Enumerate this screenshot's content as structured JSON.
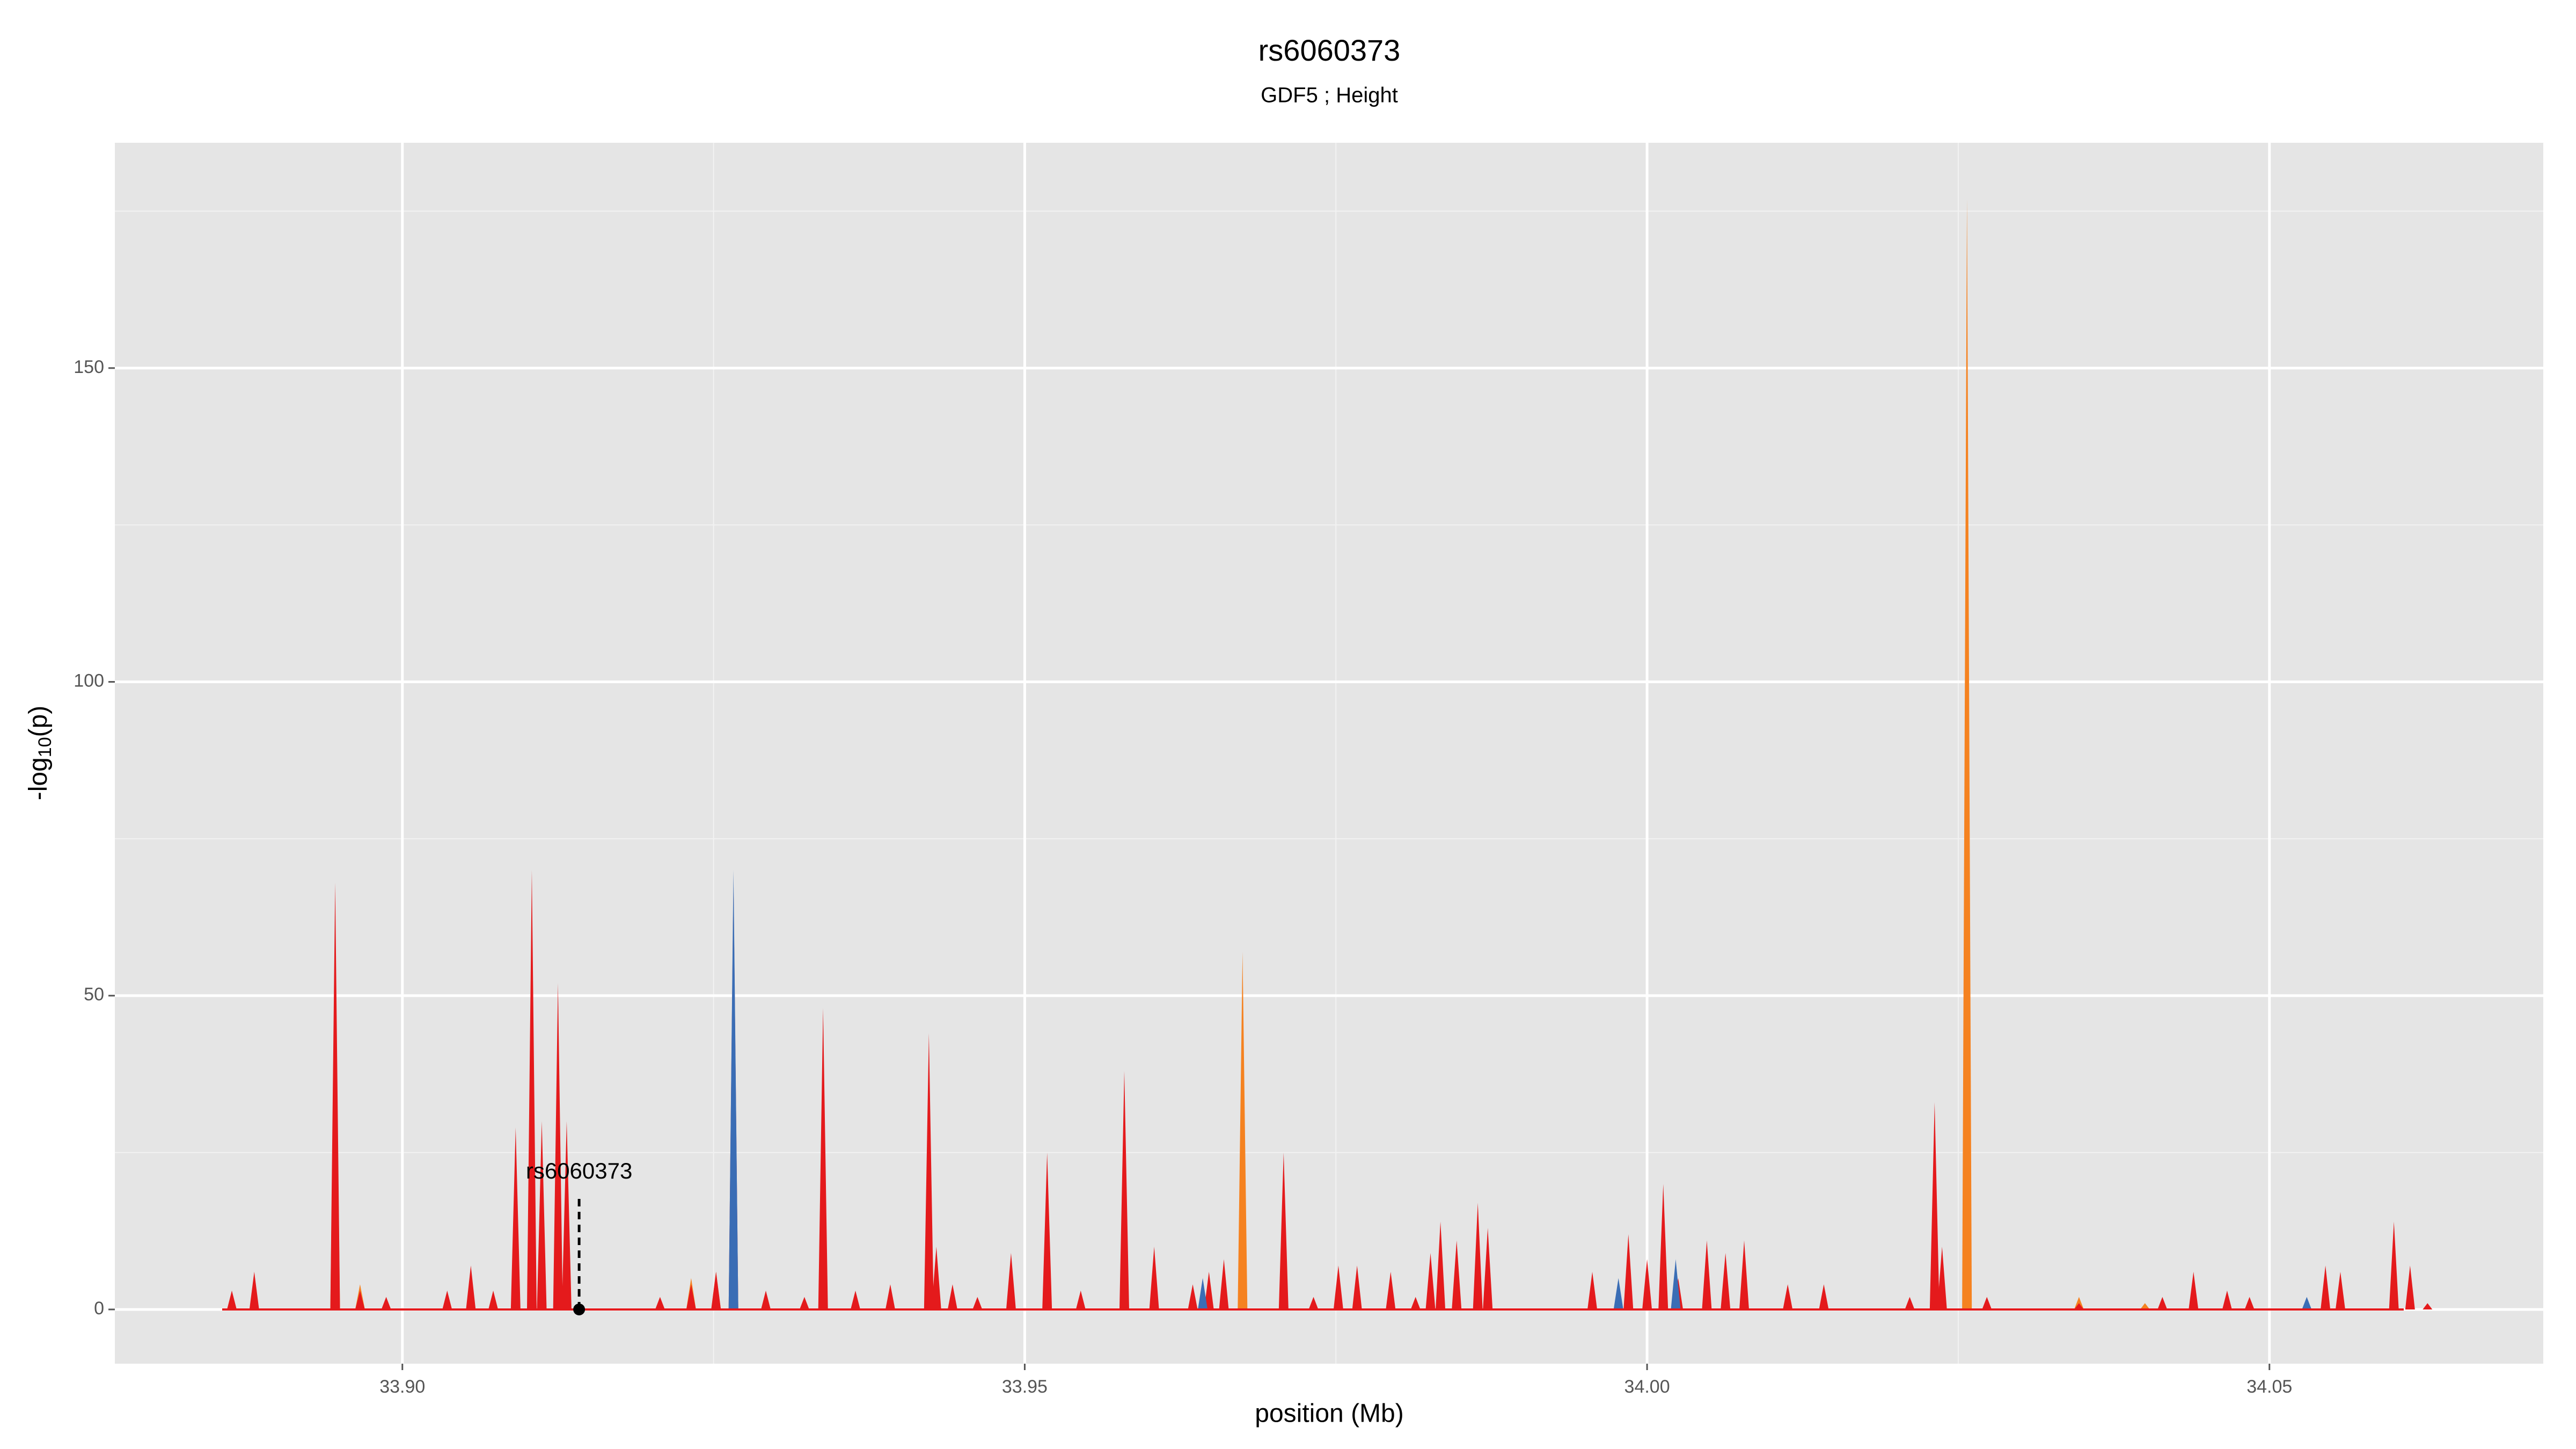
{
  "chart_data": {
    "type": "area",
    "title": "rs6060373",
    "subtitle": "GDF5 ; Height",
    "xlabel": "position (Mb)",
    "ylabel_parts": [
      "-log",
      "10",
      "(p)"
    ],
    "xlim": [
      33.8769,
      34.072
    ],
    "ylim": [
      -8.64,
      185.9
    ],
    "xticks": [
      {
        "value": 33.9,
        "label": "33.90"
      },
      {
        "value": 33.95,
        "label": "33.95"
      },
      {
        "value": 34.0,
        "label": "34.00"
      },
      {
        "value": 34.05,
        "label": "34.05"
      }
    ],
    "yticks": [
      0,
      50,
      100,
      150
    ],
    "minor_xticks": [
      33.925,
      33.975,
      34.025
    ],
    "minor_yticks": [
      25,
      75,
      125,
      175
    ],
    "grid": true,
    "annotation": {
      "text": "rs6060373",
      "x": 33.9142,
      "y": 0
    },
    "series": [
      {
        "color": "#f58220",
        "x": [
          33.8946,
          33.8966,
          33.9232,
          33.9252,
          33.9675,
          33.9794,
          34.0257,
          34.0347,
          34.04
        ],
        "values": [
          60,
          4,
          5,
          6,
          57,
          3,
          177,
          2,
          1
        ]
      },
      {
        "color": "#e41a1c",
        "x": [
          33.8863,
          33.8881,
          33.8946,
          33.8966,
          33.8987,
          33.9036,
          33.9055,
          33.9073,
          33.9091,
          33.9104,
          33.9112,
          33.9125,
          33.9132,
          33.9207,
          33.9232,
          33.9252,
          33.9266,
          33.9292,
          33.9323,
          33.9338,
          33.9364,
          33.9392,
          33.9423,
          33.9429,
          33.9442,
          33.9462,
          33.9489,
          33.9518,
          33.9545,
          33.958,
          33.9604,
          33.9635,
          33.9648,
          33.966,
          33.9708,
          33.9732,
          33.9752,
          33.9767,
          33.9794,
          33.9814,
          33.9826,
          33.9834,
          33.9847,
          33.9864,
          33.9872,
          33.9956,
          33.9985,
          34.0,
          34.0013,
          34.0025,
          34.0048,
          34.0063,
          34.0078,
          34.0113,
          34.0142,
          34.0211,
          34.0231,
          34.0237,
          34.0273,
          34.0347,
          34.0414,
          34.0439,
          34.0466,
          34.0484,
          34.0545,
          34.0557,
          34.06,
          34.0613,
          34.0627
        ],
        "values": [
          3,
          6,
          68,
          3,
          2,
          3,
          7,
          3,
          29,
          70,
          30,
          52,
          30,
          2,
          4,
          6,
          68,
          3,
          2,
          48,
          3,
          4,
          44,
          10,
          4,
          2,
          9,
          25,
          3,
          38,
          10,
          4,
          6,
          8,
          25,
          2,
          7,
          7,
          6,
          2,
          9,
          14,
          11,
          17,
          13,
          6,
          12,
          8,
          20,
          5,
          11,
          9,
          11,
          4,
          4,
          2,
          33,
          10,
          2,
          1,
          2,
          6,
          3,
          2,
          7,
          6,
          14,
          7,
          1
        ]
      },
      {
        "color": "#3a6db5",
        "x": [
          33.9266,
          33.9643,
          33.9977,
          34.0023,
          34.053
        ],
        "values": [
          70,
          5,
          5,
          8,
          2
        ]
      }
    ]
  }
}
